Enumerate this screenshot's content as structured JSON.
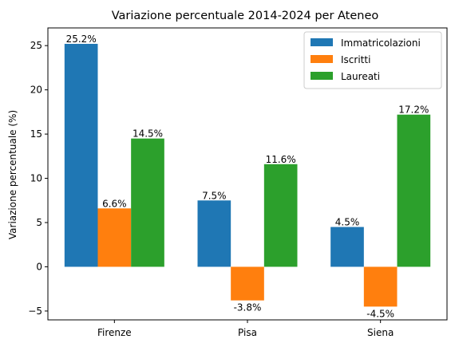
{
  "chart_data": {
    "type": "bar",
    "title": "Variazione percentuale 2014-2024 per Ateneo",
    "xlabel": "",
    "ylabel": "Variazione percentuale (%)",
    "categories": [
      "Firenze",
      "Pisa",
      "Siena"
    ],
    "series": [
      {
        "name": "Immatricolazioni",
        "color": "#1f77b4",
        "values": [
          25.2,
          7.5,
          4.5
        ],
        "labels": [
          "25.2%",
          "7.5%",
          "4.5%"
        ]
      },
      {
        "name": "Iscritti",
        "color": "#ff7f0e",
        "values": [
          6.6,
          -3.8,
          -4.5
        ],
        "labels": [
          "6.6%",
          "-3.8%",
          "-4.5%"
        ]
      },
      {
        "name": "Laureati",
        "color": "#2ca02c",
        "values": [
          14.5,
          11.6,
          17.2
        ],
        "labels": [
          "14.5%",
          "11.6%",
          "17.2%"
        ]
      }
    ],
    "ylim": [
      -6,
      27
    ],
    "yticks": [
      -5,
      0,
      5,
      10,
      15,
      20,
      25
    ],
    "ytick_labels": [
      "−5",
      "0",
      "5",
      "10",
      "15",
      "20",
      "25"
    ],
    "grid": false,
    "legend_position": "top-right"
  }
}
